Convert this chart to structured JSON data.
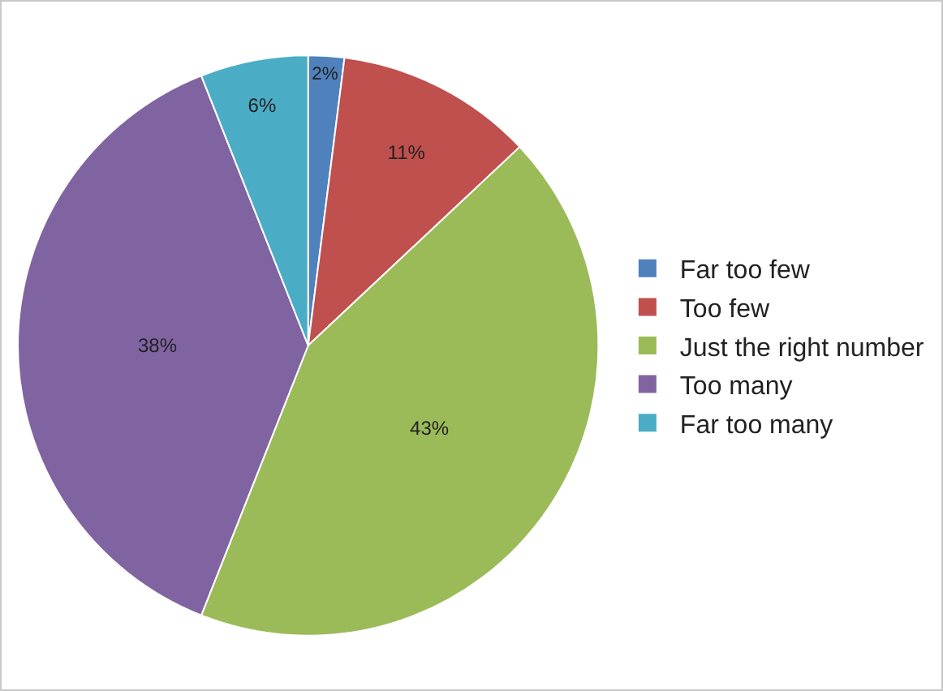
{
  "chart_data": {
    "type": "pie",
    "categories": [
      "Far too few",
      "Too few",
      "Just the right number",
      "Too many",
      "Far too many"
    ],
    "values": [
      2,
      11,
      43,
      38,
      6
    ],
    "colors": [
      "#4f81bd",
      "#c0504d",
      "#9bbb59",
      "#8064a2",
      "#4bacc6"
    ],
    "value_labels": [
      "2%",
      "11%",
      "43%",
      "38%",
      "6%"
    ],
    "legend": "right"
  }
}
